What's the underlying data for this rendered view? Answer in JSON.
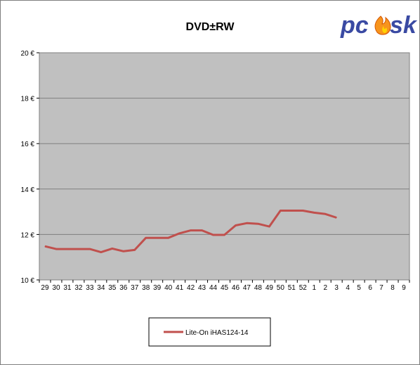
{
  "chart_data": {
    "type": "line",
    "title": "DVD±RW",
    "xlabel": "",
    "ylabel": "",
    "categories": [
      "29",
      "30",
      "31",
      "32",
      "33",
      "34",
      "35",
      "36",
      "37",
      "38",
      "39",
      "40",
      "41",
      "42",
      "43",
      "44",
      "45",
      "46",
      "47",
      "48",
      "49",
      "50",
      "51",
      "52",
      "1",
      "2",
      "3",
      "4",
      "5",
      "6",
      "7",
      "8",
      "9"
    ],
    "ylim": [
      10,
      20
    ],
    "yticks": [
      10,
      12,
      14,
      16,
      18,
      20
    ],
    "ytick_labels": [
      "10 €",
      "12 €",
      "14 €",
      "16 €",
      "18 €",
      "20 €"
    ],
    "grid": true,
    "legend_position": "bottom",
    "series": [
      {
        "name": "Lite-On  iHAS124-14",
        "color": "#c0504d",
        "values": [
          11.48,
          11.36,
          11.36,
          11.36,
          11.36,
          11.22,
          11.38,
          11.26,
          11.32,
          11.85,
          11.85,
          11.85,
          12.05,
          12.18,
          12.18,
          11.98,
          11.98,
          12.4,
          12.5,
          12.47,
          12.35,
          13.05,
          13.05,
          13.05,
          12.96,
          12.9,
          12.74,
          null,
          null,
          null,
          null,
          null,
          null
        ]
      }
    ]
  },
  "logo": {
    "text": "pc⁠sk"
  },
  "colors": {
    "plot_background": "#c0c0c0",
    "gridline": "#7f7f7f",
    "frame_border": "#7f7f7f",
    "logo_blue": "#3a4aa3",
    "logo_flame": "#f7941d"
  }
}
